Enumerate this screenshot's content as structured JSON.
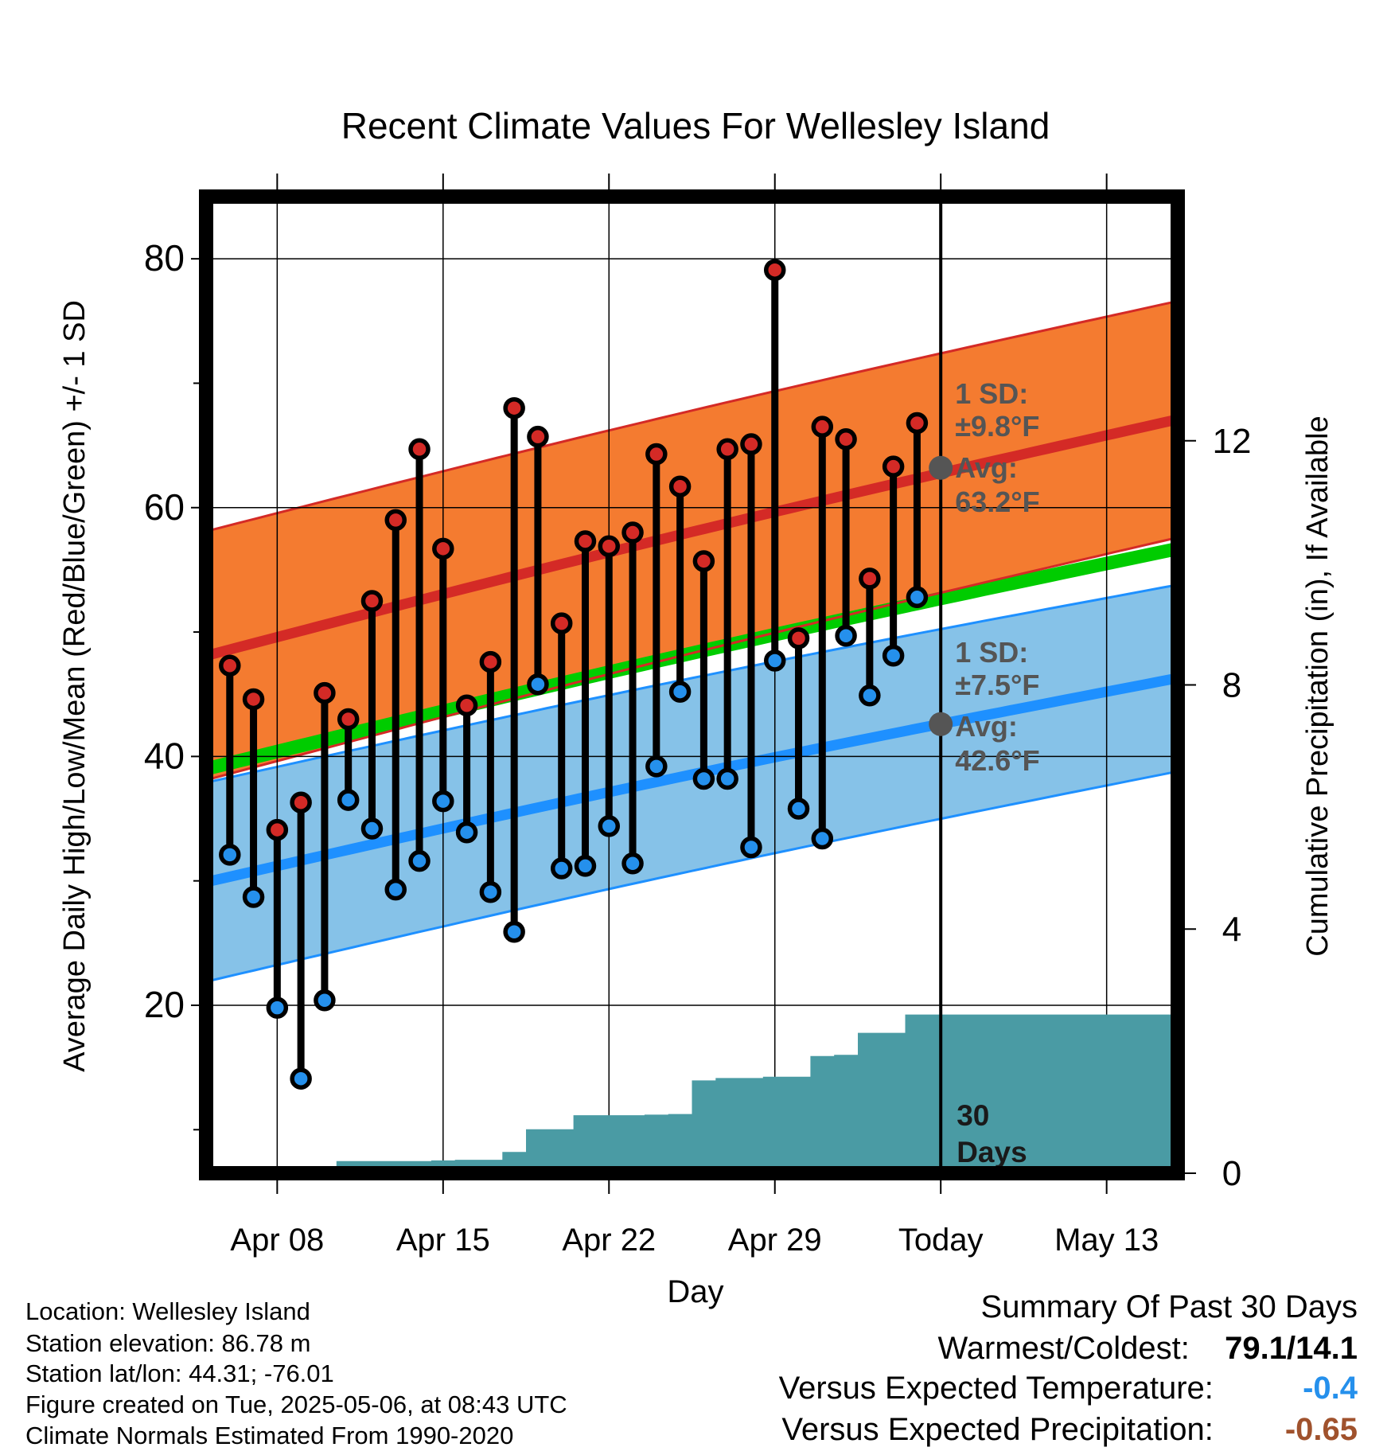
{
  "title": "Recent Climate Values For Wellesley Island",
  "chart_data": {
    "type": "line",
    "title": "Recent Climate Values For Wellesley Island",
    "xlabel": "Day",
    "ylabel": "Average Daily High/Low/Mean (Red/Blue/Green) +/- 1 SD",
    "ylabel_right": "Cumulative Precipitation (in), If Available",
    "ylim": [
      6.5,
      85
    ],
    "y2lim": [
      0,
      16
    ],
    "y_ticks": [
      "20",
      "40",
      "60",
      "80"
    ],
    "y2_ticks": [
      "0",
      "4",
      "8",
      "12"
    ],
    "x_tick_labels": [
      "Apr 08",
      "Apr 15",
      "Apr 22",
      "Apr 29",
      "Today",
      "May 13"
    ],
    "grid": true,
    "x_domain": [
      "2025-04-05",
      "2025-05-16"
    ],
    "x_ticks": [
      "2025-04-08",
      "2025-04-15",
      "2025-04-22",
      "2025-04-29",
      "2025-05-06",
      "2025-05-13"
    ],
    "today": "2025-05-06",
    "normals": {
      "high_mean_start": 48.1,
      "high_mean_end": 67.1,
      "high_sd_start": 10.0,
      "high_sd_end": 9.5,
      "low_mean_start": 29.9,
      "low_mean_end": 46.3,
      "low_sd_start": 8.0,
      "low_sd_end": 7.5,
      "mean_start": 39.0,
      "mean_end": 56.7
    },
    "dates": [
      "2025-04-06",
      "2025-04-07",
      "2025-04-08",
      "2025-04-09",
      "2025-04-10",
      "2025-04-11",
      "2025-04-12",
      "2025-04-13",
      "2025-04-14",
      "2025-04-15",
      "2025-04-16",
      "2025-04-17",
      "2025-04-18",
      "2025-04-19",
      "2025-04-20",
      "2025-04-21",
      "2025-04-22",
      "2025-04-23",
      "2025-04-24",
      "2025-04-25",
      "2025-04-26",
      "2025-04-27",
      "2025-04-28",
      "2025-04-29",
      "2025-04-30",
      "2025-05-01",
      "2025-05-02",
      "2025-05-03",
      "2025-05-04",
      "2025-05-05"
    ],
    "highs": [
      47.3,
      44.6,
      34.1,
      36.3,
      45.1,
      43.0,
      52.5,
      59.0,
      64.7,
      56.7,
      44.1,
      47.6,
      68.0,
      65.7,
      50.7,
      57.3,
      56.9,
      58.0,
      64.3,
      61.7,
      55.7,
      64.7,
      65.1,
      79.1,
      49.5,
      66.5,
      65.5,
      54.3,
      63.3,
      66.8
    ],
    "lows": [
      32.1,
      28.7,
      19.8,
      14.1,
      20.4,
      36.5,
      34.2,
      29.3,
      31.6,
      36.4,
      33.9,
      29.1,
      25.9,
      45.8,
      31.0,
      31.2,
      34.4,
      31.4,
      39.2,
      45.2,
      38.2,
      38.2,
      32.7,
      47.7,
      35.8,
      33.4,
      49.7,
      44.9,
      48.1,
      52.8
    ],
    "precip_cumulative": [
      0.0,
      0.0,
      0.0,
      0.0,
      0.1,
      0.2,
      0.2,
      0.2,
      0.2,
      0.21,
      0.22,
      0.22,
      0.35,
      0.72,
      0.72,
      0.95,
      0.95,
      0.95,
      0.96,
      0.97,
      1.52,
      1.56,
      1.56,
      1.58,
      1.58,
      1.92,
      1.94,
      2.3,
      2.3,
      2.6
    ],
    "precip_x_extend_to": "2025-05-16",
    "series": [
      {
        "name": "Red",
        "values": "highs"
      },
      {
        "name": "Blue",
        "values": "lows"
      },
      {
        "name": "Green",
        "values": "mean"
      }
    ],
    "annotations": {
      "high_sd_line1": "1 SD:",
      "high_sd_line2": "±9.8°F",
      "high_avg_line1": "Avg:",
      "high_avg_line2": "63.2°F",
      "high_avg_value": 63.2,
      "low_sd_line1": "1 SD:",
      "low_sd_line2": "±7.5°F",
      "low_avg_line1": "Avg:",
      "low_avg_line2": "42.6°F",
      "low_avg_value": 42.6,
      "precip_line1": "30",
      "precip_line2": "Days"
    },
    "colors": {
      "high_band": "#f47b30",
      "high_line": "#d42a26",
      "low_band": "#86c2e8",
      "low_line": "#1e90ff",
      "mean_line": "#00cc00",
      "precip": "#4a9ba4",
      "high_dot": "#d42a26",
      "low_dot": "#2590ec",
      "avg_dot": "#555555"
    }
  },
  "info": {
    "location": "Location: Wellesley Island",
    "elevation": "Station elevation: 86.78 m",
    "latlon": "Station lat/lon: 44.31; -76.01",
    "created": "Figure created on Tue, 2025-05-06, at 08:43 UTC",
    "normals": "Climate Normals Estimated From 1990-2020"
  },
  "summary": {
    "title": "Summary Of Past 30 Days",
    "warmest_label": "Warmest/Coldest:",
    "warmest_value": "79.1/14.1",
    "temp_label": "Versus Expected Temperature:",
    "temp_value": "-0.4",
    "temp_color": "#2590ec",
    "precip_label": "Versus Expected Precipitation:",
    "precip_value": "-0.65",
    "precip_color": "#a0522d"
  }
}
